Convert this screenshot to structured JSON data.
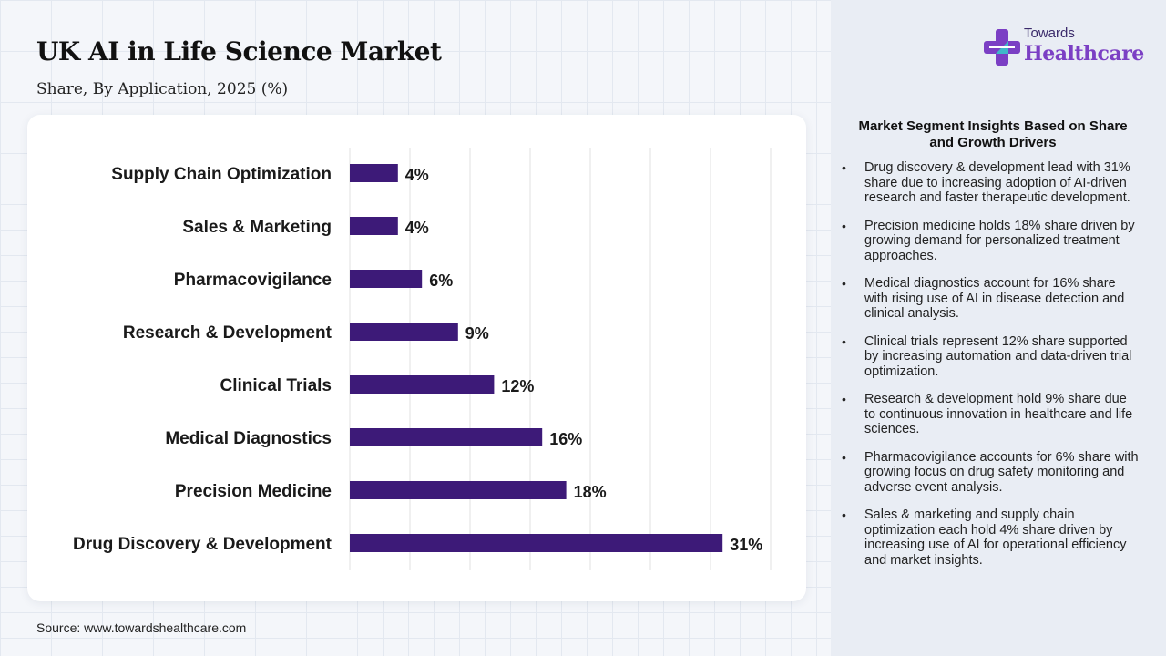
{
  "header": {
    "title": "UK AI in Life Science Market",
    "subtitle": "Share, By Application, 2025 (%)"
  },
  "logo": {
    "top": "Towards",
    "bottom": "Healthcare"
  },
  "source": "Source: www.towardshealthcare.com",
  "insights": {
    "title": "Market Segment Insights Based on Share and Growth Drivers",
    "items": [
      "Drug discovery & development lead with 31% share due to increasing adoption of AI-driven research and faster therapeutic development.",
      "Precision medicine holds 18% share driven by growing demand for personalized treatment approaches.",
      "Medical diagnostics account for 16% share with rising use of AI in disease detection and clinical analysis.",
      "Clinical trials represent 12% share supported by increasing automation and data-driven trial optimization.",
      "Research & development hold 9% share due to continuous innovation in healthcare and life sciences.",
      "Pharmacovigilance accounts for 6% share with growing focus on drug safety monitoring and adverse event analysis.",
      "Sales & marketing and supply chain optimization each hold 4% share driven by increasing use of AI for operational efficiency and market insights."
    ]
  },
  "chart_data": {
    "type": "bar",
    "orientation": "horizontal",
    "categories": [
      "Supply Chain Optimization",
      "Sales & Marketing",
      "Pharmacovigilance",
      "Research & Development",
      "Clinical Trials",
      "Medical Diagnostics",
      "Precision Medicine",
      "Drug Discovery & Development"
    ],
    "values": [
      4,
      4,
      6,
      9,
      12,
      16,
      18,
      31
    ],
    "value_labels": [
      "4%",
      "4%",
      "6%",
      "9%",
      "12%",
      "16%",
      "18%",
      "31%"
    ],
    "xlim": [
      0,
      35
    ],
    "grid": true,
    "bar_color": "#3d1a78"
  },
  "colors": {
    "bar": "#3d1a78",
    "brand_purple": "#7b3fc4"
  }
}
